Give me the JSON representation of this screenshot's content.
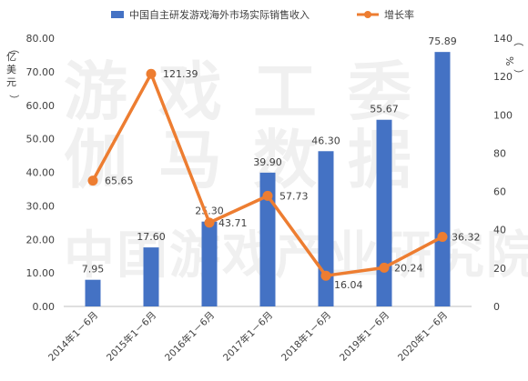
{
  "chart_data": {
    "type": "bar",
    "categories": [
      "2014年1－6月",
      "2015年1－6月",
      "2016年1－6月",
      "2017年1－6月",
      "2018年1－6月",
      "2019年1－6月",
      "2020年1－6月"
    ],
    "series": [
      {
        "name": "中国自主研发游戏海外市场实际销售收入",
        "type": "bar",
        "axis": "left",
        "color": "#4472c4",
        "values": [
          7.95,
          17.6,
          25.3,
          39.9,
          46.3,
          55.67,
          75.89
        ],
        "labels": [
          "7.95",
          "17.60",
          "25.30",
          "39.90",
          "46.30",
          "55.67",
          "75.89"
        ]
      },
      {
        "name": "增长率",
        "type": "line",
        "axis": "right",
        "color": "#ed7d31",
        "values": [
          65.65,
          121.39,
          43.71,
          57.73,
          16.04,
          20.24,
          36.32
        ],
        "labels": [
          "65.65",
          "121.39",
          "43.71",
          "57.73",
          "16.04",
          "20.24",
          "36.32"
        ]
      }
    ],
    "ylabel": "亿美元",
    "y2label": "%",
    "ylim": [
      0,
      80
    ],
    "y_ticks": [
      "0.00",
      "10.00",
      "20.00",
      "30.00",
      "40.00",
      "50.00",
      "60.00",
      "70.00",
      "80.00"
    ],
    "y2lim": [
      0,
      140
    ],
    "y2_ticks": [
      "0",
      "20",
      "40",
      "60",
      "80",
      "100",
      "120",
      "140"
    ],
    "legend_position": "top",
    "grid": false,
    "watermark": [
      "游戏工委",
      "伽马数据",
      "中国游戏产业研究院"
    ]
  }
}
